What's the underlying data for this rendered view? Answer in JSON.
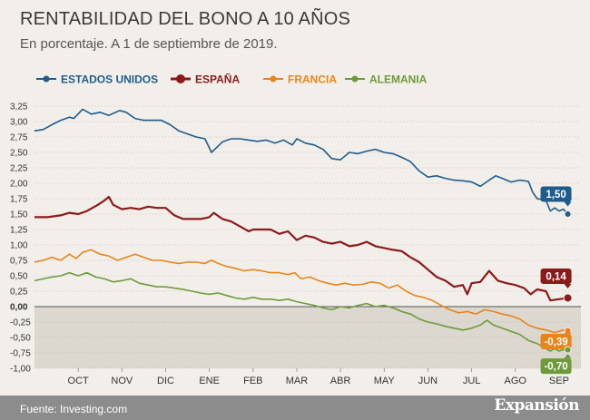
{
  "header": {
    "title": "RENTABILIDAD DEL BONO A 10 AÑOS",
    "subtitle": "En porcentaje. A 1 de septiembre de 2019."
  },
  "footer": {
    "source": "Fuente: Investing.com",
    "brand": "Expansión"
  },
  "chart_data": {
    "type": "line",
    "title": "RENTABILIDAD DEL BONO A 10 AÑOS",
    "subtitle": "En porcentaje. A 1 de septiembre de 2019.",
    "xlabel": "",
    "ylabel": "",
    "ylim": [
      -1.0,
      3.25
    ],
    "yticks": [
      "3,25",
      "3,00",
      "2,75",
      "2,50",
      "2,25",
      "2,00",
      "1,75",
      "1,50",
      "1,25",
      "1,00",
      "0,75",
      "0,50",
      "0,25",
      "0,00",
      "-0,25",
      "-0,50",
      "-0,75",
      "-1,00"
    ],
    "ytick_values": [
      3.25,
      3.0,
      2.75,
      2.5,
      2.25,
      2.0,
      1.75,
      1.5,
      1.25,
      1.0,
      0.75,
      0.5,
      0.25,
      0.0,
      -0.25,
      -0.5,
      -0.75,
      -1.0
    ],
    "x_range": [
      0,
      12
    ],
    "months": [
      {
        "label": "OCT",
        "pos": 1
      },
      {
        "label": "NOV",
        "pos": 2
      },
      {
        "label": "DIC",
        "pos": 3
      },
      {
        "label": "ENE",
        "pos": 4
      },
      {
        "label": "FEB",
        "pos": 5
      },
      {
        "label": "MAR",
        "pos": 6
      },
      {
        "label": "ABR",
        "pos": 7
      },
      {
        "label": "MAY",
        "pos": 8
      },
      {
        "label": "JUN",
        "pos": 9
      },
      {
        "label": "JUL",
        "pos": 10
      },
      {
        "label": "AGO",
        "pos": 11
      },
      {
        "label": "SEP",
        "pos": 12
      }
    ],
    "negative_shading": true,
    "legend_position": "top",
    "series": [
      {
        "name": "ESTADOS UNIDOS",
        "color": "#1f5c8b",
        "end_label": "1,50",
        "points": [
          [
            0,
            2.85
          ],
          [
            0.2,
            2.87
          ],
          [
            0.4,
            2.95
          ],
          [
            0.6,
            3.02
          ],
          [
            0.8,
            3.07
          ],
          [
            0.9,
            3.05
          ],
          [
            1.1,
            3.2
          ],
          [
            1.3,
            3.12
          ],
          [
            1.5,
            3.15
          ],
          [
            1.7,
            3.1
          ],
          [
            1.95,
            3.18
          ],
          [
            2.1,
            3.15
          ],
          [
            2.3,
            3.05
          ],
          [
            2.5,
            3.02
          ],
          [
            2.7,
            3.02
          ],
          [
            2.9,
            3.02
          ],
          [
            3.1,
            2.95
          ],
          [
            3.3,
            2.85
          ],
          [
            3.5,
            2.8
          ],
          [
            3.7,
            2.75
          ],
          [
            3.9,
            2.72
          ],
          [
            4.05,
            2.5
          ],
          [
            4.3,
            2.67
          ],
          [
            4.5,
            2.72
          ],
          [
            4.7,
            2.72
          ],
          [
            4.9,
            2.7
          ],
          [
            5.1,
            2.68
          ],
          [
            5.3,
            2.7
          ],
          [
            5.5,
            2.65
          ],
          [
            5.7,
            2.7
          ],
          [
            5.9,
            2.62
          ],
          [
            6.0,
            2.72
          ],
          [
            6.2,
            2.65
          ],
          [
            6.4,
            2.62
          ],
          [
            6.6,
            2.55
          ],
          [
            6.8,
            2.4
          ],
          [
            7.0,
            2.38
          ],
          [
            7.2,
            2.5
          ],
          [
            7.4,
            2.48
          ],
          [
            7.6,
            2.52
          ],
          [
            7.8,
            2.55
          ],
          [
            8.0,
            2.5
          ],
          [
            8.2,
            2.48
          ],
          [
            8.4,
            2.42
          ],
          [
            8.6,
            2.35
          ],
          [
            8.8,
            2.2
          ],
          [
            9.0,
            2.1
          ],
          [
            9.2,
            2.12
          ],
          [
            9.4,
            2.08
          ],
          [
            9.6,
            2.05
          ],
          [
            9.8,
            2.04
          ],
          [
            10.0,
            2.02
          ],
          [
            10.2,
            1.95
          ],
          [
            10.4,
            2.05
          ],
          [
            10.55,
            2.12
          ],
          [
            10.7,
            2.08
          ],
          [
            10.9,
            2.02
          ],
          [
            11.1,
            2.05
          ],
          [
            11.3,
            2.03
          ],
          [
            11.4,
            1.85
          ],
          [
            11.5,
            1.75
          ],
          [
            11.7,
            1.72
          ],
          [
            11.8,
            1.55
          ],
          [
            11.9,
            1.6
          ],
          [
            12.0,
            1.55
          ],
          [
            12.1,
            1.58
          ],
          [
            12.2,
            1.5
          ]
        ]
      },
      {
        "name": "ESPAÑA",
        "color": "#8b1a1a",
        "end_label": "0,14",
        "points": [
          [
            0,
            1.45
          ],
          [
            0.3,
            1.45
          ],
          [
            0.6,
            1.48
          ],
          [
            0.8,
            1.52
          ],
          [
            1.0,
            1.5
          ],
          [
            1.2,
            1.55
          ],
          [
            1.45,
            1.65
          ],
          [
            1.6,
            1.72
          ],
          [
            1.7,
            1.78
          ],
          [
            1.8,
            1.65
          ],
          [
            2.0,
            1.58
          ],
          [
            2.2,
            1.6
          ],
          [
            2.4,
            1.58
          ],
          [
            2.6,
            1.62
          ],
          [
            2.8,
            1.6
          ],
          [
            3.0,
            1.6
          ],
          [
            3.2,
            1.48
          ],
          [
            3.4,
            1.42
          ],
          [
            3.6,
            1.42
          ],
          [
            3.8,
            1.42
          ],
          [
            4.0,
            1.45
          ],
          [
            4.1,
            1.52
          ],
          [
            4.3,
            1.42
          ],
          [
            4.5,
            1.38
          ],
          [
            4.7,
            1.3
          ],
          [
            4.9,
            1.22
          ],
          [
            5.0,
            1.25
          ],
          [
            5.2,
            1.25
          ],
          [
            5.4,
            1.25
          ],
          [
            5.6,
            1.18
          ],
          [
            5.8,
            1.22
          ],
          [
            6.0,
            1.08
          ],
          [
            6.2,
            1.15
          ],
          [
            6.4,
            1.12
          ],
          [
            6.6,
            1.05
          ],
          [
            6.8,
            1.02
          ],
          [
            7.0,
            1.05
          ],
          [
            7.2,
            0.98
          ],
          [
            7.4,
            1.0
          ],
          [
            7.6,
            1.05
          ],
          [
            7.8,
            0.98
          ],
          [
            8.0,
            0.95
          ],
          [
            8.2,
            0.92
          ],
          [
            8.4,
            0.9
          ],
          [
            8.6,
            0.8
          ],
          [
            8.8,
            0.72
          ],
          [
            9.0,
            0.6
          ],
          [
            9.2,
            0.48
          ],
          [
            9.4,
            0.42
          ],
          [
            9.6,
            0.32
          ],
          [
            9.8,
            0.35
          ],
          [
            9.9,
            0.2
          ],
          [
            10.0,
            0.38
          ],
          [
            10.2,
            0.4
          ],
          [
            10.4,
            0.58
          ],
          [
            10.6,
            0.42
          ],
          [
            10.8,
            0.38
          ],
          [
            11.0,
            0.35
          ],
          [
            11.2,
            0.3
          ],
          [
            11.35,
            0.2
          ],
          [
            11.5,
            0.28
          ],
          [
            11.7,
            0.25
          ],
          [
            11.8,
            0.1
          ],
          [
            12.0,
            0.12
          ],
          [
            12.1,
            0.13
          ],
          [
            12.2,
            0.14
          ]
        ]
      },
      {
        "name": "FRANCIA",
        "color": "#e8841a",
        "end_label": "-0,39",
        "points": [
          [
            0,
            0.72
          ],
          [
            0.2,
            0.75
          ],
          [
            0.4,
            0.8
          ],
          [
            0.6,
            0.75
          ],
          [
            0.8,
            0.85
          ],
          [
            0.95,
            0.78
          ],
          [
            1.1,
            0.88
          ],
          [
            1.3,
            0.92
          ],
          [
            1.5,
            0.85
          ],
          [
            1.7,
            0.82
          ],
          [
            1.9,
            0.75
          ],
          [
            2.1,
            0.8
          ],
          [
            2.3,
            0.85
          ],
          [
            2.5,
            0.8
          ],
          [
            2.7,
            0.75
          ],
          [
            2.9,
            0.75
          ],
          [
            3.1,
            0.72
          ],
          [
            3.3,
            0.7
          ],
          [
            3.5,
            0.72
          ],
          [
            3.7,
            0.72
          ],
          [
            3.9,
            0.7
          ],
          [
            4.05,
            0.75
          ],
          [
            4.2,
            0.7
          ],
          [
            4.4,
            0.65
          ],
          [
            4.6,
            0.62
          ],
          [
            4.8,
            0.58
          ],
          [
            5.0,
            0.6
          ],
          [
            5.2,
            0.58
          ],
          [
            5.4,
            0.55
          ],
          [
            5.6,
            0.55
          ],
          [
            5.8,
            0.52
          ],
          [
            5.95,
            0.55
          ],
          [
            6.1,
            0.45
          ],
          [
            6.3,
            0.48
          ],
          [
            6.5,
            0.42
          ],
          [
            6.7,
            0.38
          ],
          [
            6.9,
            0.35
          ],
          [
            7.1,
            0.38
          ],
          [
            7.3,
            0.35
          ],
          [
            7.5,
            0.36
          ],
          [
            7.7,
            0.4
          ],
          [
            7.9,
            0.38
          ],
          [
            8.1,
            0.3
          ],
          [
            8.3,
            0.35
          ],
          [
            8.5,
            0.25
          ],
          [
            8.7,
            0.18
          ],
          [
            8.9,
            0.15
          ],
          [
            9.1,
            0.1
          ],
          [
            9.3,
            0.02
          ],
          [
            9.5,
            -0.05
          ],
          [
            9.7,
            -0.1
          ],
          [
            9.9,
            -0.08
          ],
          [
            10.1,
            -0.12
          ],
          [
            10.3,
            -0.05
          ],
          [
            10.5,
            -0.08
          ],
          [
            10.7,
            -0.12
          ],
          [
            10.9,
            -0.15
          ],
          [
            11.1,
            -0.2
          ],
          [
            11.3,
            -0.3
          ],
          [
            11.5,
            -0.35
          ],
          [
            11.7,
            -0.38
          ],
          [
            11.9,
            -0.42
          ],
          [
            12.0,
            -0.4
          ],
          [
            12.1,
            -0.38
          ],
          [
            12.2,
            -0.39
          ]
        ]
      },
      {
        "name": "ALEMANIA",
        "color": "#6e9a3c",
        "end_label": "-0,70",
        "points": [
          [
            0,
            0.42
          ],
          [
            0.2,
            0.45
          ],
          [
            0.4,
            0.48
          ],
          [
            0.6,
            0.5
          ],
          [
            0.8,
            0.55
          ],
          [
            1.0,
            0.5
          ],
          [
            1.2,
            0.55
          ],
          [
            1.4,
            0.48
          ],
          [
            1.6,
            0.45
          ],
          [
            1.8,
            0.4
          ],
          [
            2.0,
            0.42
          ],
          [
            2.2,
            0.45
          ],
          [
            2.4,
            0.38
          ],
          [
            2.6,
            0.35
          ],
          [
            2.8,
            0.32
          ],
          [
            3.0,
            0.32
          ],
          [
            3.2,
            0.3
          ],
          [
            3.4,
            0.28
          ],
          [
            3.6,
            0.25
          ],
          [
            3.8,
            0.22
          ],
          [
            4.0,
            0.2
          ],
          [
            4.2,
            0.22
          ],
          [
            4.4,
            0.18
          ],
          [
            4.6,
            0.14
          ],
          [
            4.8,
            0.12
          ],
          [
            5.0,
            0.15
          ],
          [
            5.2,
            0.12
          ],
          [
            5.4,
            0.12
          ],
          [
            5.6,
            0.1
          ],
          [
            5.8,
            0.12
          ],
          [
            6.0,
            0.08
          ],
          [
            6.2,
            0.05
          ],
          [
            6.4,
            0.02
          ],
          [
            6.6,
            -0.02
          ],
          [
            6.8,
            -0.05
          ],
          [
            7.0,
            0.0
          ],
          [
            7.2,
            -0.02
          ],
          [
            7.4,
            0.02
          ],
          [
            7.6,
            0.05
          ],
          [
            7.8,
            0.0
          ],
          [
            8.0,
            0.02
          ],
          [
            8.2,
            -0.02
          ],
          [
            8.4,
            -0.08
          ],
          [
            8.6,
            -0.12
          ],
          [
            8.8,
            -0.2
          ],
          [
            9.0,
            -0.25
          ],
          [
            9.2,
            -0.28
          ],
          [
            9.4,
            -0.32
          ],
          [
            9.6,
            -0.35
          ],
          [
            9.8,
            -0.38
          ],
          [
            10.0,
            -0.35
          ],
          [
            10.2,
            -0.3
          ],
          [
            10.35,
            -0.22
          ],
          [
            10.5,
            -0.3
          ],
          [
            10.7,
            -0.35
          ],
          [
            10.9,
            -0.4
          ],
          [
            11.1,
            -0.45
          ],
          [
            11.3,
            -0.55
          ],
          [
            11.5,
            -0.6
          ],
          [
            11.7,
            -0.68
          ],
          [
            11.8,
            -0.72
          ],
          [
            11.9,
            -0.68
          ],
          [
            12.0,
            -0.72
          ],
          [
            12.1,
            -0.7
          ],
          [
            12.2,
            -0.7
          ]
        ]
      }
    ]
  }
}
